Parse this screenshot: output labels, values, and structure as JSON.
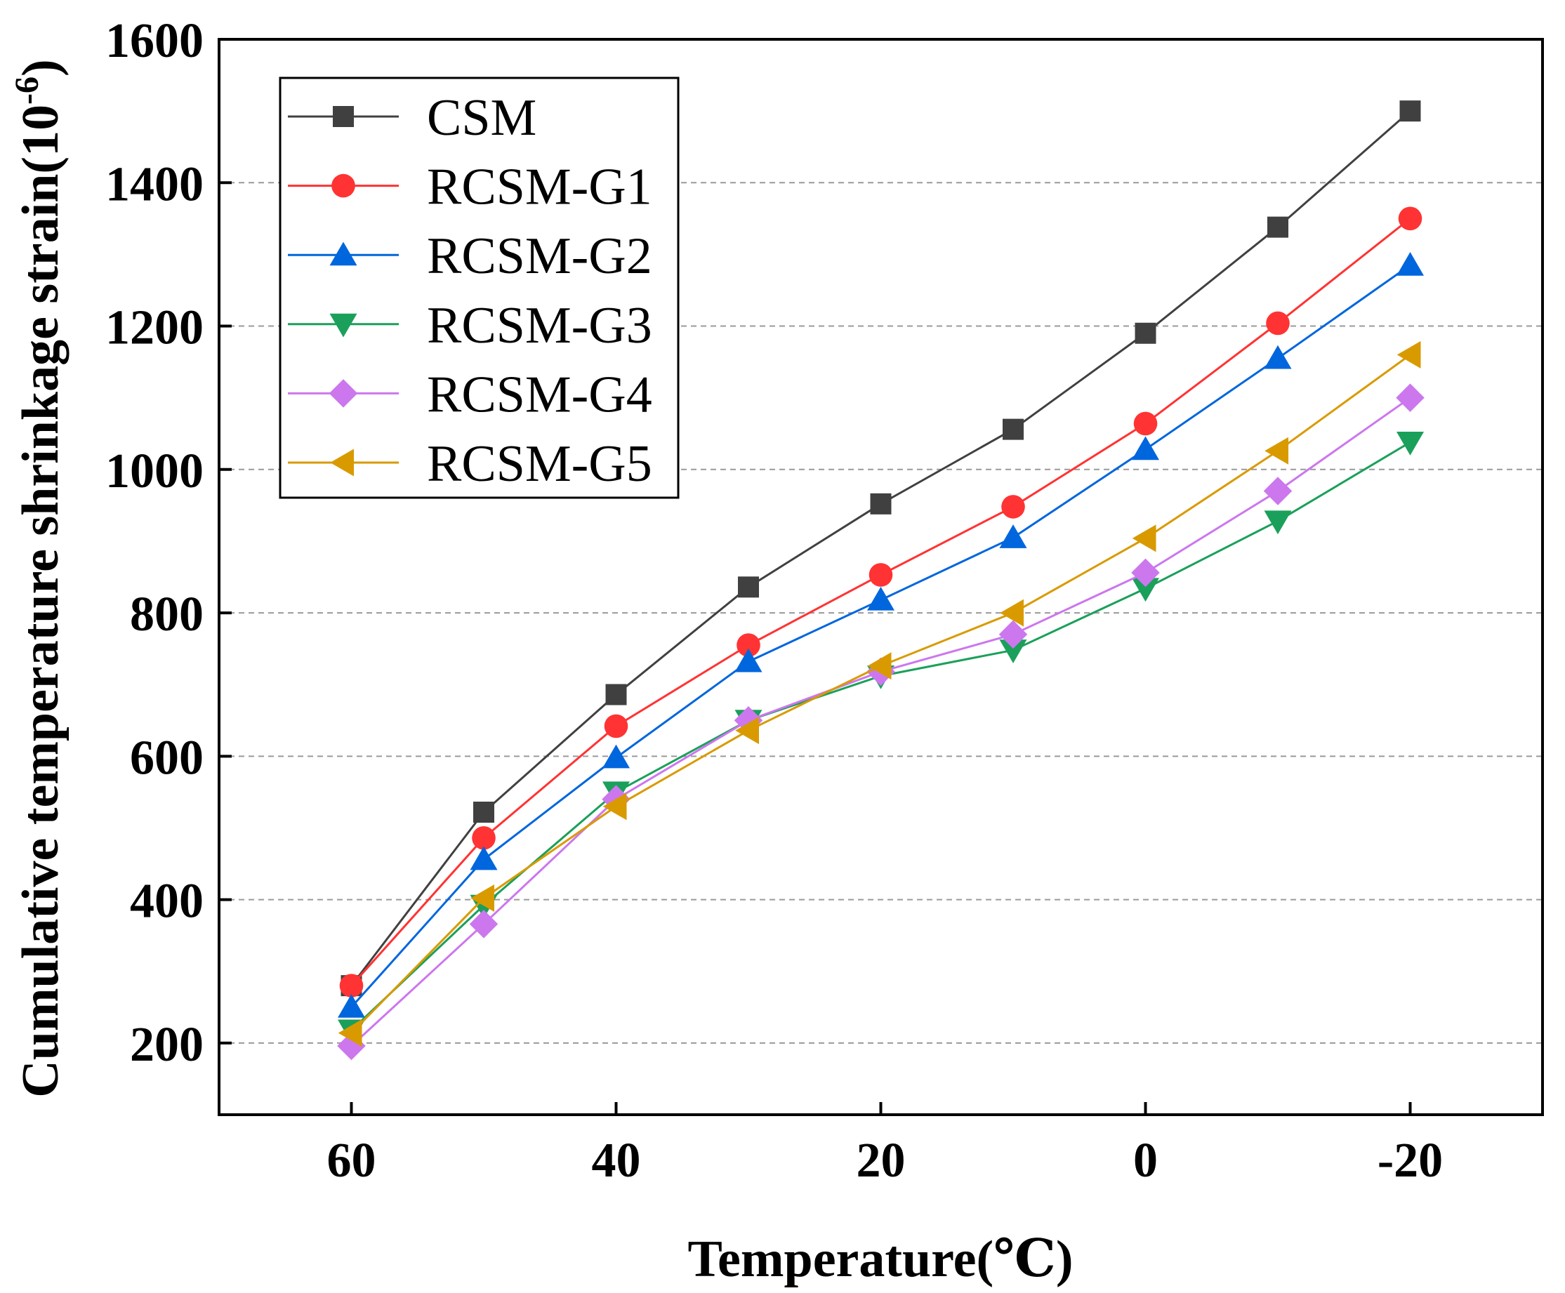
{
  "chart_data": {
    "type": "line",
    "title": "",
    "xlabel": "Temperature(℃)",
    "ylabel_main": "Cumulative temperature shrinkage strain(10",
    "ylabel_exp": "-6",
    "ylabel_close": ")",
    "x": [
      60,
      50,
      40,
      30,
      20,
      10,
      0,
      -10,
      -20
    ],
    "xlim": [
      70,
      -30
    ],
    "ylim": [
      100,
      1600
    ],
    "xticks": [
      60,
      40,
      20,
      0,
      -20
    ],
    "xtick_labels": [
      "60",
      "40",
      "20",
      "0",
      "-20"
    ],
    "yticks": [
      200,
      400,
      600,
      800,
      1000,
      1200,
      1400,
      1600
    ],
    "ytick_labels": [
      "200",
      "400",
      "600",
      "800",
      "1000",
      "1200",
      "1400",
      "1600"
    ],
    "grid": "horizontal dashed",
    "legend_position": "top-left",
    "series": [
      {
        "name": "CSM",
        "color": "#404040",
        "marker": "square",
        "values": [
          280,
          522,
          686,
          836,
          952,
          1056,
          1190,
          1338,
          1500
        ]
      },
      {
        "name": "RCSM-G1",
        "color": "#ff3333",
        "marker": "circle",
        "values": [
          280,
          486,
          642,
          755,
          853,
          948,
          1064,
          1204,
          1350
        ]
      },
      {
        "name": "RCSM-G2",
        "color": "#0066dd",
        "marker": "triangle-up",
        "values": [
          250,
          456,
          598,
          732,
          818,
          905,
          1028,
          1155,
          1285
        ]
      },
      {
        "name": "RCSM-G3",
        "color": "#1aa05a",
        "marker": "triangle-down",
        "values": [
          218,
          392,
          550,
          650,
          712,
          748,
          834,
          928,
          1038
        ]
      },
      {
        "name": "RCSM-G4",
        "color": "#cc77ee",
        "marker": "diamond",
        "values": [
          196,
          366,
          540,
          650,
          718,
          770,
          856,
          970,
          1100
        ]
      },
      {
        "name": "RCSM-G5",
        "color": "#d99a00",
        "marker": "triangle-left",
        "values": [
          214,
          402,
          530,
          636,
          726,
          800,
          904,
          1026,
          1160
        ]
      }
    ]
  }
}
